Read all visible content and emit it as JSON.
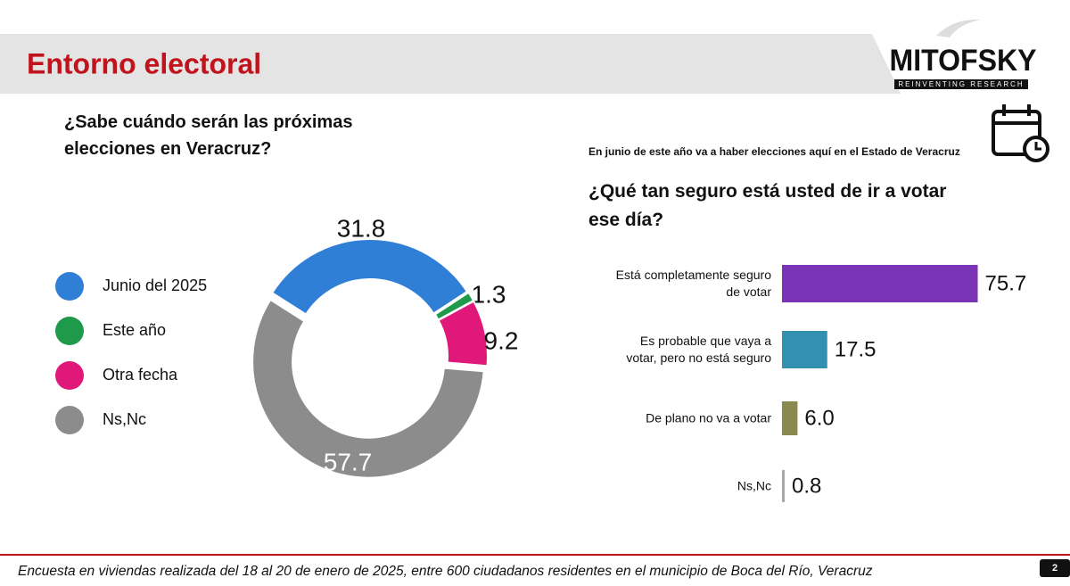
{
  "header": {
    "title": "Entorno electoral"
  },
  "logo": {
    "name": "MITOFSKY",
    "tagline": "REINVENTING RESEARCH"
  },
  "footer": {
    "note": "Encuesta en viviendas realizada del 18 al 20 de enero de 2025, entre 600 ciudadanos residentes en el municipio de Boca del Río, Veracruz",
    "page": "2"
  },
  "chart_data": [
    {
      "type": "donut",
      "title": "¿Sabe cuándo serán las próximas elecciones en Veracruz?",
      "categories": [
        "Junio del 2025",
        "Este año",
        "Otra fecha",
        "Ns,Nc"
      ],
      "values": [
        31.8,
        1.3,
        9.2,
        57.7
      ],
      "colors": [
        "#2f7fd6",
        "#1f9a4a",
        "#e0187a",
        "#8c8c8c"
      ]
    },
    {
      "type": "hbar",
      "subtitle": "En junio de este año va a haber elecciones aquí en el Estado de Veracruz",
      "title": "¿Qué tan seguro está usted de ir a votar ese día?",
      "categories": [
        "Está completamente seguro de votar",
        "Es probable que vaya a votar, pero no está seguro",
        "De plano no va a votar",
        "Ns,Nc"
      ],
      "values": [
        75.7,
        17.5,
        6.0,
        0.8
      ],
      "value_labels": [
        "75.7",
        "17.5",
        "6.0",
        "0.8"
      ],
      "colors": [
        "#7b33b5",
        "#3490b0",
        "#8a8a4e",
        "#a8a8a8"
      ]
    }
  ]
}
